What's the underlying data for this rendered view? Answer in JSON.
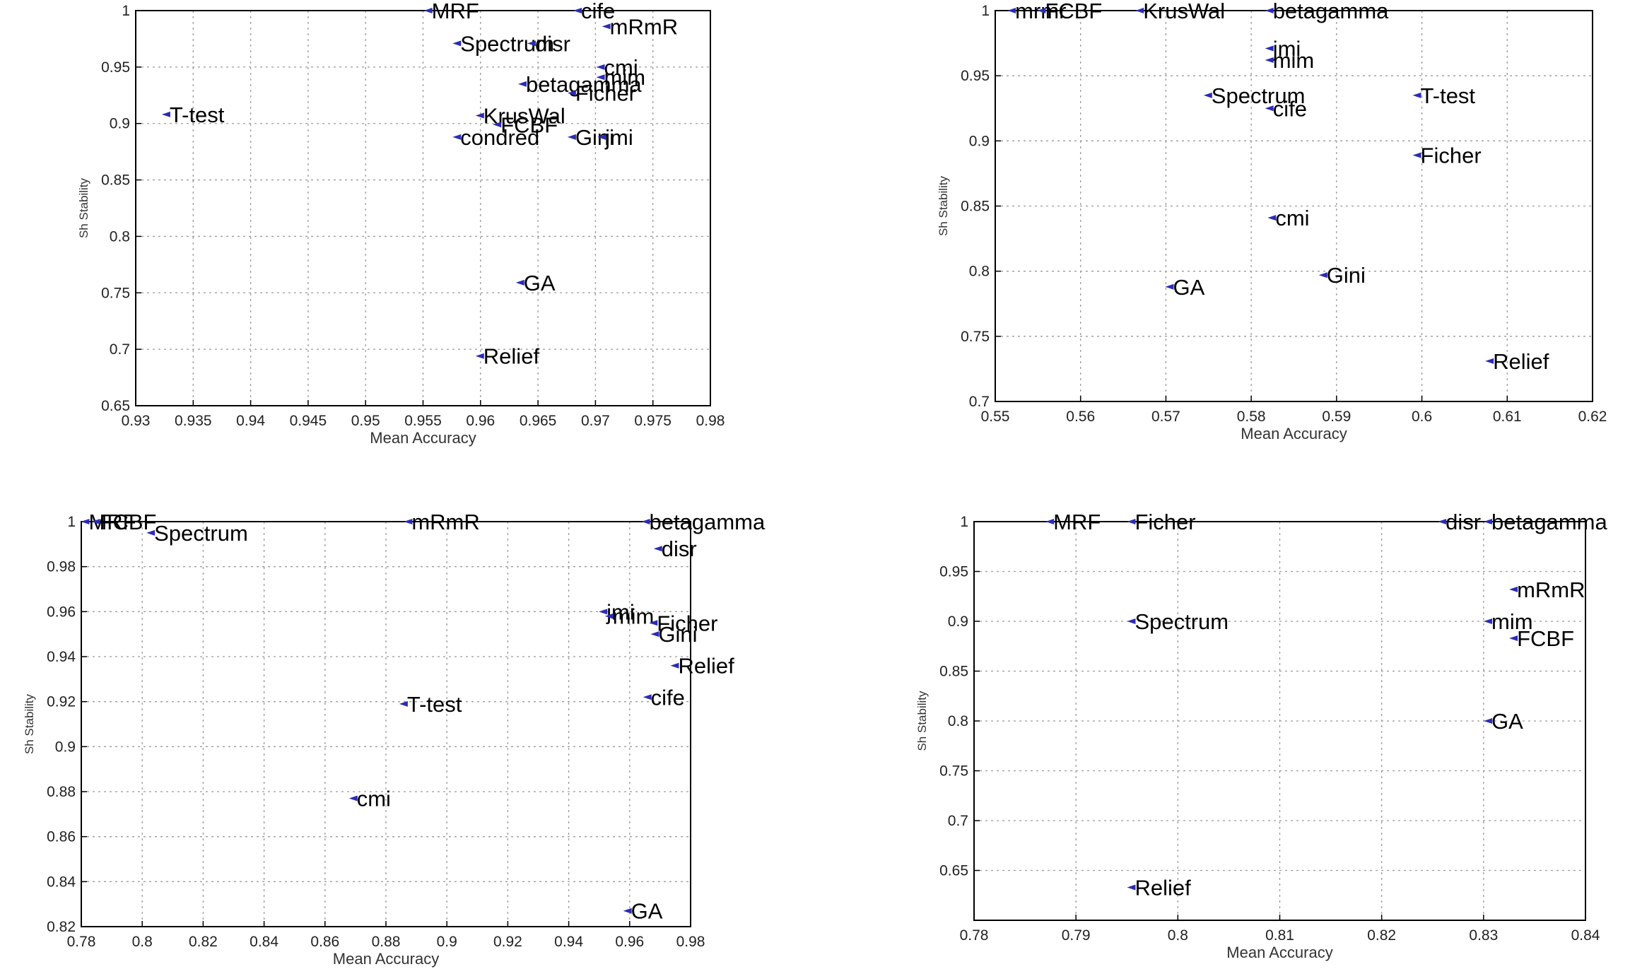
{
  "chart_data": [
    {
      "type": "scatter",
      "xlabel": "Mean Accuracy",
      "ylabel": "Sh Stability",
      "xlim": [
        0.93,
        0.98
      ],
      "ylim": [
        0.65,
        1.0
      ],
      "xticks": [
        "0.93",
        "0.935",
        "0.94",
        "0.945",
        "0.95",
        "0.955",
        "0.96",
        "0.965",
        "0.97",
        "0.975",
        "0.98"
      ],
      "yticks": [
        "0.65",
        "0.7",
        "0.75",
        "0.8",
        "0.85",
        "0.9",
        "0.95",
        "1"
      ],
      "grid": true,
      "points": [
        {
          "label": "MRF",
          "x": 0.9555,
          "y": 1.0
        },
        {
          "label": "cife",
          "x": 0.9685,
          "y": 1.0
        },
        {
          "label": "mRmR",
          "x": 0.971,
          "y": 0.986
        },
        {
          "label": "Spectrum",
          "x": 0.958,
          "y": 0.971
        },
        {
          "label": "disr",
          "x": 0.9645,
          "y": 0.971
        },
        {
          "label": "cmi",
          "x": 0.9705,
          "y": 0.95
        },
        {
          "label": "mim",
          "x": 0.9705,
          "y": 0.941
        },
        {
          "label": "betagamma",
          "x": 0.9637,
          "y": 0.935
        },
        {
          "label": "Ficher",
          "x": 0.968,
          "y": 0.927
        },
        {
          "label": "T-test",
          "x": 0.9327,
          "y": 0.908
        },
        {
          "label": "KrusWal",
          "x": 0.96,
          "y": 0.907
        },
        {
          "label": "FCBF",
          "x": 0.9615,
          "y": 0.899
        },
        {
          "label": "condred",
          "x": 0.958,
          "y": 0.888
        },
        {
          "label": "Gini",
          "x": 0.968,
          "y": 0.888
        },
        {
          "label": "jmi",
          "x": 0.9706,
          "y": 0.888
        },
        {
          "label": "GA",
          "x": 0.9635,
          "y": 0.759
        },
        {
          "label": "Relief",
          "x": 0.96,
          "y": 0.694
        }
      ]
    },
    {
      "type": "scatter",
      "xlabel": "Mean Accuracy",
      "ylabel": "Sh Stability",
      "xlim": [
        0.55,
        0.62
      ],
      "ylim": [
        0.7,
        1.0
      ],
      "xticks": [
        "0.55",
        "0.56",
        "0.57",
        "0.58",
        "0.59",
        "0.6",
        "0.61",
        "0.62"
      ],
      "yticks": [
        "0.7",
        "0.75",
        "0.8",
        "0.85",
        "0.9",
        "0.95",
        "1"
      ],
      "grid": true,
      "points": [
        {
          "label": "mrmr",
          "x": 0.552,
          "y": 1.0
        },
        {
          "label": "FCBF",
          "x": 0.5555,
          "y": 1.0
        },
        {
          "label": "KrusWal",
          "x": 0.567,
          "y": 1.0
        },
        {
          "label": "betagamma",
          "x": 0.5822,
          "y": 1.0
        },
        {
          "label": "jmi",
          "x": 0.5822,
          "y": 0.971
        },
        {
          "label": "mim",
          "x": 0.5822,
          "y": 0.962
        },
        {
          "label": "Spectrum",
          "x": 0.575,
          "y": 0.935
        },
        {
          "label": "T-test",
          "x": 0.5995,
          "y": 0.935
        },
        {
          "label": "cife",
          "x": 0.5822,
          "y": 0.925
        },
        {
          "label": "Ficher",
          "x": 0.5995,
          "y": 0.889
        },
        {
          "label": "cmi",
          "x": 0.5825,
          "y": 0.841
        },
        {
          "label": "Gini",
          "x": 0.5885,
          "y": 0.797
        },
        {
          "label": "GA",
          "x": 0.5705,
          "y": 0.788
        },
        {
          "label": "Relief",
          "x": 0.608,
          "y": 0.731
        }
      ]
    },
    {
      "type": "scatter",
      "xlabel": "Mean Accuracy",
      "ylabel": "Sh Stability",
      "xlim": [
        0.78,
        0.98
      ],
      "ylim": [
        0.82,
        1.0
      ],
      "xticks": [
        "0.78",
        "0.8",
        "0.82",
        "0.84",
        "0.86",
        "0.88",
        "0.9",
        "0.92",
        "0.94",
        "0.96",
        "0.98"
      ],
      "yticks": [
        "0.82",
        "0.84",
        "0.86",
        "0.88",
        "0.9",
        "0.92",
        "0.94",
        "0.96",
        "0.98",
        "1"
      ],
      "grid": true,
      "points": [
        {
          "label": "MRF",
          "x": 0.7815,
          "y": 1.0
        },
        {
          "label": "FCBF",
          "x": 0.785,
          "y": 1.0
        },
        {
          "label": "Spectrum",
          "x": 0.803,
          "y": 0.995
        },
        {
          "label": "mRmR",
          "x": 0.8875,
          "y": 1.0
        },
        {
          "label": "betagamma",
          "x": 0.9655,
          "y": 1.0
        },
        {
          "label": "disr",
          "x": 0.9695,
          "y": 0.988
        },
        {
          "label": "jmi",
          "x": 0.9515,
          "y": 0.96
        },
        {
          "label": "mim",
          "x": 0.9535,
          "y": 0.958
        },
        {
          "label": "Ficher",
          "x": 0.968,
          "y": 0.955
        },
        {
          "label": "Gini",
          "x": 0.9685,
          "y": 0.95
        },
        {
          "label": "Relief",
          "x": 0.975,
          "y": 0.936
        },
        {
          "label": "cife",
          "x": 0.966,
          "y": 0.922
        },
        {
          "label": "T-test",
          "x": 0.886,
          "y": 0.919
        },
        {
          "label": "cmi",
          "x": 0.8695,
          "y": 0.877
        },
        {
          "label": "GA",
          "x": 0.9595,
          "y": 0.827
        }
      ]
    },
    {
      "type": "scatter",
      "xlabel": "Mean Accuracy",
      "ylabel": "Sh Stability",
      "xlim": [
        0.78,
        0.84
      ],
      "ylim": [
        0.6,
        1.0
      ],
      "xticks": [
        "0.78",
        "0.79",
        "0.8",
        "0.81",
        "0.82",
        "0.83",
        "0.84"
      ],
      "yticks": [
        "0.65",
        "0.7",
        "0.75",
        "0.8",
        "0.85",
        "0.9",
        "0.95",
        "1"
      ],
      "grid": true,
      "points": [
        {
          "label": "MRF",
          "x": 0.7875,
          "y": 1.0
        },
        {
          "label": "Ficher",
          "x": 0.7955,
          "y": 1.0
        },
        {
          "label": "disr",
          "x": 0.826,
          "y": 1.0
        },
        {
          "label": "betagamma",
          "x": 0.8305,
          "y": 1.0
        },
        {
          "label": "mRmR",
          "x": 0.833,
          "y": 0.932
        },
        {
          "label": "Spectrum",
          "x": 0.7955,
          "y": 0.9
        },
        {
          "label": "mim",
          "x": 0.8305,
          "y": 0.9
        },
        {
          "label": "FCBF",
          "x": 0.833,
          "y": 0.883
        },
        {
          "label": "GA",
          "x": 0.8305,
          "y": 0.8
        },
        {
          "label": "Relief",
          "x": 0.7955,
          "y": 0.633
        }
      ]
    }
  ]
}
